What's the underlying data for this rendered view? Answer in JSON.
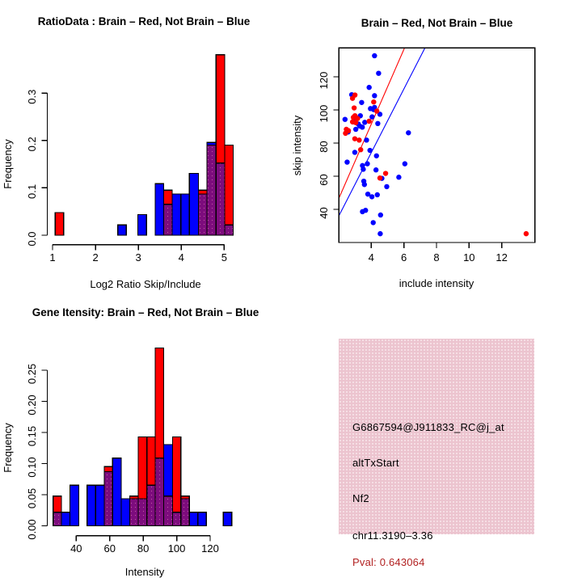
{
  "figure": {
    "background": "#ffffff",
    "red_hex": "#ff0000",
    "blue_hex": "#0000ff",
    "overlap_hex": "#7d0c7d",
    "axis_hex": "#000000"
  },
  "info_panel": {
    "probe_id": "G6867594@J911833_RC@j_at",
    "event_type": "altTxStart",
    "gene": "Nf2",
    "location": "chr11.3190–3.36",
    "pval_label": "Pval: 0.643064",
    "box_color": "#ecc4cf",
    "pval_color": "#b22222"
  },
  "chart_data": [
    {
      "type": "bar",
      "subtype": "overlaid-histogram",
      "title": "RatioData : Brain – Red, Not Brain – Blue",
      "xlabel": "Log2 Ratio Skip/Include",
      "ylabel": "Frequency",
      "x_ticks": [
        1,
        2,
        3,
        4,
        5
      ],
      "x_tick_labels": [
        "1",
        "2",
        "3",
        "4",
        "5"
      ],
      "y_ticks": [
        0,
        0.1,
        0.2,
        0.3
      ],
      "y_tick_labels": [
        "0.0",
        "0.1",
        "0.2",
        "0.3"
      ],
      "xlim": [
        1,
        5.25
      ],
      "ylim": [
        0,
        0.385
      ],
      "grid": false,
      "legend": {
        "red": "Brain",
        "blue": "Not Brain",
        "position": "in-title"
      },
      "bars": [
        {
          "x0": 1.06,
          "x1": 1.26,
          "red": 0.0476,
          "blue": 0
        },
        {
          "x0": 2.52,
          "x1": 2.72,
          "red": 0,
          "blue": 0.0217
        },
        {
          "x0": 2.99,
          "x1": 3.19,
          "red": 0,
          "blue": 0.0435
        },
        {
          "x0": 3.39,
          "x1": 3.59,
          "red": 0,
          "blue": 0.1087
        },
        {
          "x0": 3.59,
          "x1": 3.79,
          "red": 0.0952,
          "blue": 0.0652
        },
        {
          "x0": 3.79,
          "x1": 3.99,
          "red": 0,
          "blue": 0.087
        },
        {
          "x0": 3.99,
          "x1": 4.19,
          "red": 0,
          "blue": 0.087
        },
        {
          "x0": 4.19,
          "x1": 4.4,
          "red": 0,
          "blue": 0.1304
        },
        {
          "x0": 4.4,
          "x1": 4.6,
          "red": 0.0952,
          "blue": 0.087
        },
        {
          "x0": 4.6,
          "x1": 4.81,
          "red": 0.1905,
          "blue": 0.1957
        },
        {
          "x0": 4.81,
          "x1": 5.01,
          "red": 0.381,
          "blue": 0.1522
        },
        {
          "x0": 5.01,
          "x1": 5.21,
          "red": 0.1905,
          "blue": 0.0217
        }
      ]
    },
    {
      "type": "scatter",
      "title": "Brain – Red, Not Brain – Blue",
      "xlabel": "include intensity",
      "ylabel": "skip intensity",
      "x_ticks": [
        4,
        6,
        8,
        10,
        12
      ],
      "x_tick_labels": [
        "4",
        "6",
        "8",
        "10",
        "12"
      ],
      "y_ticks": [
        40,
        60,
        80,
        100,
        120
      ],
      "y_tick_labels": [
        "40",
        "60",
        "80",
        "100",
        "120"
      ],
      "xlim": [
        2.0,
        14.1
      ],
      "ylim": [
        20,
        137.5
      ],
      "grid": false,
      "box": true,
      "lines": [
        {
          "name": "brain-fit-line",
          "color": "#ff0000",
          "from": [
            2.02,
            46.8
          ],
          "to": [
            6.04,
            137.4
          ]
        },
        {
          "name": "notbrain-fit-line",
          "color": "#0000ff",
          "from": [
            2.02,
            36.2
          ],
          "to": [
            7.29,
            137.4
          ]
        }
      ],
      "series": [
        {
          "name": "Not Brain",
          "color": "#0000ff",
          "points": [
            [
              4.2,
              132.7
            ],
            [
              4.45,
              122.1
            ],
            [
              3.87,
              113.6
            ],
            [
              2.8,
              109.2
            ],
            [
              4.2,
              108.6
            ],
            [
              3.41,
              104.5
            ],
            [
              3.95,
              100.8
            ],
            [
              4.15,
              100.2
            ],
            [
              4.2,
              101.5
            ],
            [
              4.53,
              97.4
            ],
            [
              4.4,
              91.8
            ],
            [
              2.88,
              92.8
            ],
            [
              3.29,
              90.3
            ],
            [
              3.45,
              89.6
            ],
            [
              3.05,
              88.3
            ],
            [
              2.58,
              86.7
            ],
            [
              6.28,
              86.2
            ],
            [
              3.71,
              81.8
            ],
            [
              2.99,
              74.4
            ],
            [
              3.92,
              75.6
            ],
            [
              4.32,
              72.3
            ],
            [
              2.52,
              68.5
            ],
            [
              6.06,
              67.5
            ],
            [
              3.46,
              66.4
            ],
            [
              3.76,
              67.5
            ],
            [
              3.51,
              64.2
            ],
            [
              4.29,
              63.8
            ],
            [
              5.69,
              59.4
            ],
            [
              4.65,
              58.7
            ],
            [
              3.54,
              57.0
            ],
            [
              3.58,
              55.0
            ],
            [
              4.95,
              53.7
            ],
            [
              3.79,
              49.2
            ],
            [
              4.37,
              48.8
            ],
            [
              4.04,
              47.6
            ],
            [
              3.46,
              38.6
            ],
            [
              3.65,
              39.4
            ],
            [
              4.57,
              36.6
            ],
            [
              4.12,
              32.0
            ],
            [
              4.55,
              25.3
            ],
            [
              3.2,
              91.5
            ],
            [
              3.6,
              92.5
            ],
            [
              3.33,
              96.5
            ],
            [
              4.05,
              95.8
            ],
            [
              2.39,
              94.3
            ],
            [
              3.05,
              95.0
            ]
          ]
        },
        {
          "name": "Brain",
          "color": "#ff0000",
          "points": [
            [
              2.85,
              107.0
            ],
            [
              4.15,
              104.8
            ],
            [
              2.95,
              101.2
            ],
            [
              4.34,
              99.3
            ],
            [
              3.16,
              94.8
            ],
            [
              2.85,
              92.8
            ],
            [
              3.05,
              92.3
            ],
            [
              3.87,
              93.2
            ],
            [
              2.47,
              88.3
            ],
            [
              2.42,
              85.9
            ],
            [
              2.99,
              82.6
            ],
            [
              3.26,
              81.8
            ],
            [
              3.35,
              76.0
            ],
            [
              4.88,
              61.7
            ],
            [
              4.53,
              58.9
            ],
            [
              13.5,
              25.3
            ],
            [
              3.0,
              96.5
            ],
            [
              2.9,
              95.5
            ],
            [
              3.1,
              95.0
            ],
            [
              2.6,
              87.5
            ],
            [
              3.0,
              109.0
            ]
          ]
        }
      ]
    },
    {
      "type": "bar",
      "subtype": "overlaid-histogram",
      "title": "Gene Itensity: Brain – Red, Not Brain – Blue",
      "xlabel": "Intensity",
      "ylabel": "Frequency",
      "x_ticks": [
        40,
        60,
        80,
        100,
        120
      ],
      "x_tick_labels": [
        "40",
        "60",
        "80",
        "100",
        "120"
      ],
      "y_ticks": [
        0,
        0.05,
        0.1,
        0.15,
        0.2,
        0.25
      ],
      "y_tick_labels": [
        "0.00",
        "0.05",
        "0.10",
        "0.15",
        "0.20",
        "0.25"
      ],
      "xlim": [
        26,
        133
      ],
      "ylim": [
        0,
        0.29
      ],
      "grid": false,
      "legend": {
        "red": "Brain",
        "blue": "Not Brain",
        "position": "in-title"
      },
      "bars": [
        {
          "x0": 26.2,
          "x1": 31.2,
          "red": 0.0476,
          "blue": 0.0217
        },
        {
          "x0": 31.2,
          "x1": 36.3,
          "red": 0,
          "blue": 0.0217
        },
        {
          "x0": 36.3,
          "x1": 41.5,
          "red": 0,
          "blue": 0.0652
        },
        {
          "x0": 46.5,
          "x1": 51.6,
          "red": 0,
          "blue": 0.0652
        },
        {
          "x0": 51.6,
          "x1": 56.8,
          "red": 0,
          "blue": 0.0652
        },
        {
          "x0": 56.8,
          "x1": 61.7,
          "red": 0.0952,
          "blue": 0.087
        },
        {
          "x0": 61.7,
          "x1": 66.9,
          "red": 0,
          "blue": 0.1087
        },
        {
          "x0": 66.9,
          "x1": 71.9,
          "red": 0,
          "blue": 0.0435
        },
        {
          "x0": 71.9,
          "x1": 77.0,
          "red": 0.0476,
          "blue": 0.0435
        },
        {
          "x0": 77.0,
          "x1": 82.2,
          "red": 0.1429,
          "blue": 0.0435
        },
        {
          "x0": 82.2,
          "x1": 87.2,
          "red": 0.1429,
          "blue": 0.0652
        },
        {
          "x0": 87.2,
          "x1": 92.3,
          "red": 0.2857,
          "blue": 0.1087
        },
        {
          "x0": 92.3,
          "x1": 97.5,
          "red": 0.0476,
          "blue": 0.1304
        },
        {
          "x0": 97.5,
          "x1": 102.5,
          "red": 0.1429,
          "blue": 0.0217
        },
        {
          "x0": 102.5,
          "x1": 107.6,
          "red": 0.0476,
          "blue": 0.0435
        },
        {
          "x0": 107.6,
          "x1": 112.6,
          "red": 0,
          "blue": 0.0217
        },
        {
          "x0": 112.6,
          "x1": 117.7,
          "red": 0,
          "blue": 0.0217
        },
        {
          "x0": 127.9,
          "x1": 132.9,
          "red": 0,
          "blue": 0.0217
        }
      ]
    }
  ]
}
